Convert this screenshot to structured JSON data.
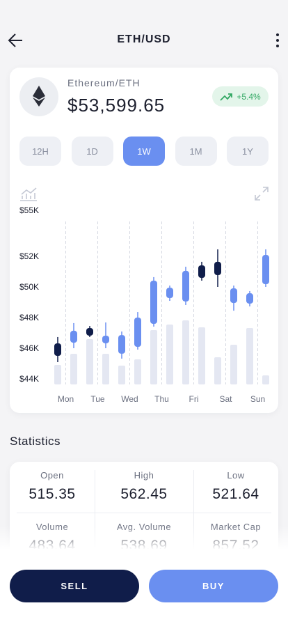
{
  "header": {
    "title": "ETH/USD"
  },
  "asset": {
    "name": "Ethereum/ETH",
    "price": "$53,599.65",
    "change": "+5.4%"
  },
  "ranges": [
    "12H",
    "1D",
    "1W",
    "1M",
    "1Y"
  ],
  "chart_data": {
    "type": "candlestick",
    "categories": [
      "Mon",
      null,
      "Tue",
      null,
      "Wed",
      null,
      "Thu",
      null,
      "Fri",
      null,
      "Sat",
      null,
      "Sun",
      null
    ],
    "open": [
      46320,
      46360,
      47320,
      46320,
      45640,
      46090,
      47590,
      49270,
      49050,
      51410,
      51640,
      48950,
      48910,
      50180
    ],
    "high": [
      46730,
      47640,
      47450,
      47680,
      47090,
      48360,
      50640,
      50090,
      51320,
      51640,
      52450,
      50090,
      49730,
      52450
    ],
    "low": [
      45090,
      46000,
      46730,
      46000,
      45320,
      45910,
      47410,
      49090,
      48820,
      50410,
      50000,
      48450,
      48730,
      50000
    ],
    "close": [
      45500,
      47140,
      46820,
      46820,
      46860,
      48000,
      50410,
      49950,
      51050,
      50590,
      50770,
      49910,
      49590,
      52090
    ],
    "volume": [
      28,
      44,
      65,
      44,
      27,
      36,
      78,
      86,
      92,
      82,
      39,
      57,
      81,
      13
    ],
    "up_color": "#6a8ff0",
    "down_color": "#101d4a",
    "volume_color": "#e4e7f2",
    "ylim": [
      44000,
      55000
    ],
    "yticks": [
      {
        "value": 44000,
        "label": "$44K"
      },
      {
        "value": 46000,
        "label": "$46K"
      },
      {
        "value": 48000,
        "label": "$48K"
      },
      {
        "value": 50000,
        "label": "$50K"
      },
      {
        "value": 52000,
        "label": "$52K"
      },
      {
        "value": 55000,
        "label": "$55K"
      }
    ]
  },
  "statistics": {
    "title": "Statistics",
    "items": [
      {
        "label": "Open",
        "value": "515.35"
      },
      {
        "label": "High",
        "value": "562.45"
      },
      {
        "label": "Low",
        "value": "521.64"
      },
      {
        "label": "Volume",
        "value": "483.64"
      },
      {
        "label": "Avg. Volume",
        "value": "538.69"
      },
      {
        "label": "Market Cap",
        "value": "857.52"
      }
    ]
  },
  "actions": {
    "sell": "SELL",
    "buy": "BUY"
  }
}
